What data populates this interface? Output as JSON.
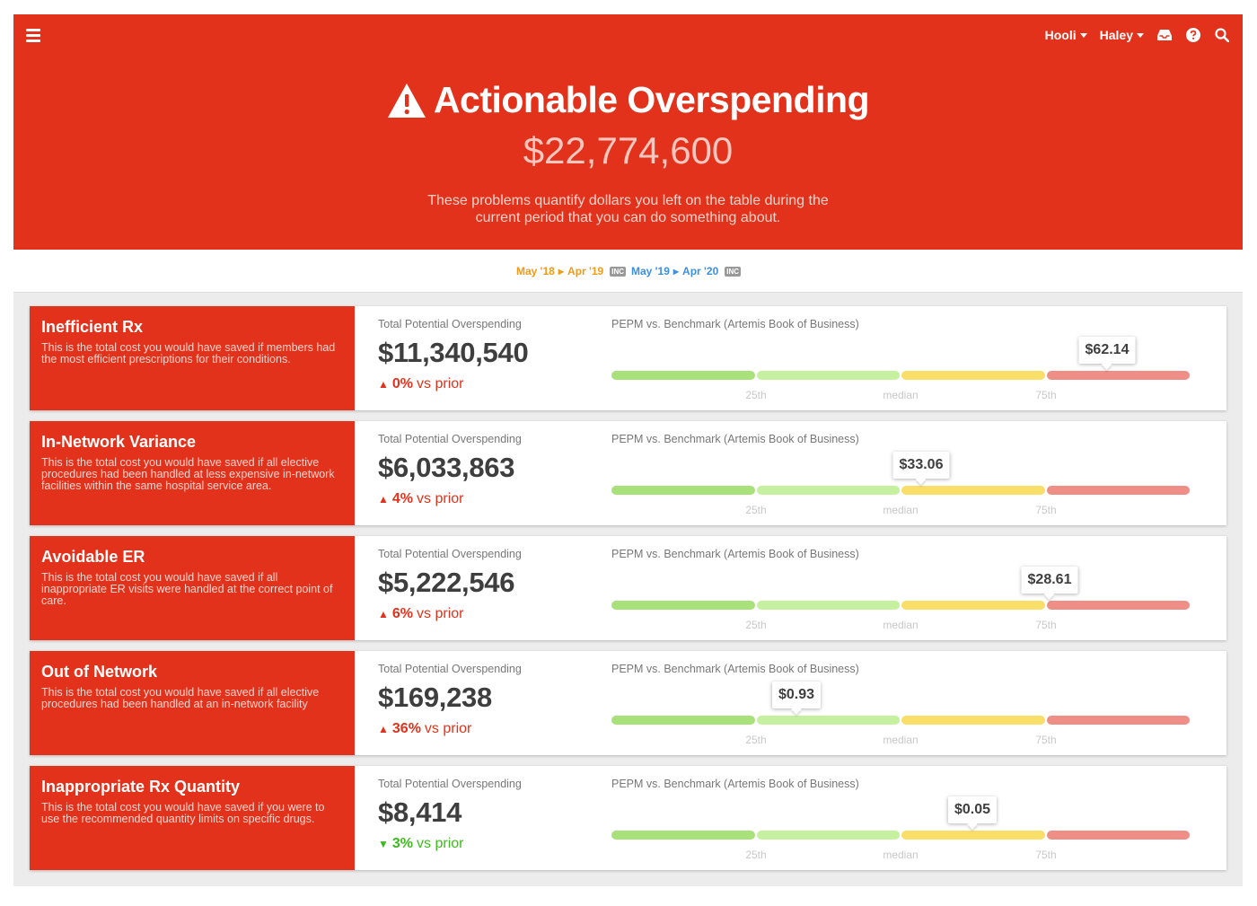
{
  "header": {
    "title": "Actionable Overspending",
    "total": "$22,774,600",
    "description_line1": "These problems quantify dollars you left on the table during the",
    "description_line2": "current period that you can do something about.",
    "nav": {
      "org": "Hooli",
      "user": "Haley",
      "icons": [
        "inbox-icon",
        "help-icon",
        "search-icon"
      ]
    }
  },
  "periods": [
    {
      "start": "May '18",
      "end": "Apr '19",
      "badge": "INC",
      "color": "#f09a1a"
    },
    {
      "start": "May '19",
      "end": "Apr '20",
      "badge": "INC",
      "color": "#3d8fe0"
    }
  ],
  "labels": {
    "total_label": "Total Potential Overspending",
    "benchmark_label": "PEPM vs. Benchmark (Artemis Book of Business)",
    "vs_prior": "vs prior",
    "ticks": [
      "25th",
      "median",
      "75th"
    ]
  },
  "colors": {
    "brand": "#e3321b",
    "up": "#e3321b",
    "down": "#3dba1e",
    "seg1": "#a8e07a",
    "seg2": "#c4f0a0",
    "seg3": "#f9df6a",
    "seg4": "#ee8e86"
  },
  "cards": [
    {
      "title": "Inefficient Rx",
      "desc": "This is the total cost you would have saved if members had the most efficient prescriptions for their conditions.",
      "amount": "$11,340,540",
      "change": "0%",
      "direction": "up",
      "pepm": "$62.14",
      "marker": 0.857
    },
    {
      "title": "In-Network Variance",
      "desc": "This is the total cost you would have saved if all elective procedures had been handled at less expensive in-network facilities within the same hospital service area.",
      "amount": "$6,033,863",
      "change": "4%",
      "direction": "up",
      "pepm": "$33.06",
      "marker": 0.535
    },
    {
      "title": "Avoidable ER",
      "desc": "This is the total cost you would have saved if all inappropriate ER visits were handled at the correct point of care.",
      "amount": "$5,222,546",
      "change": "6%",
      "direction": "up",
      "pepm": "$28.61",
      "marker": 0.757
    },
    {
      "title": "Out of Network",
      "desc": "This is the total cost you would have saved if all elective procedures had been handled at an in-network facility",
      "amount": "$169,238",
      "change": "36%",
      "direction": "up",
      "pepm": "$0.93",
      "marker": 0.32
    },
    {
      "title": "Inappropriate Rx Quantity",
      "desc": "This is the total cost you would have saved if you were to use the recommended quantity limits on specific drugs.",
      "amount": "$8,414",
      "change": "3%",
      "direction": "down",
      "pepm": "$0.05",
      "marker": 0.624
    }
  ]
}
